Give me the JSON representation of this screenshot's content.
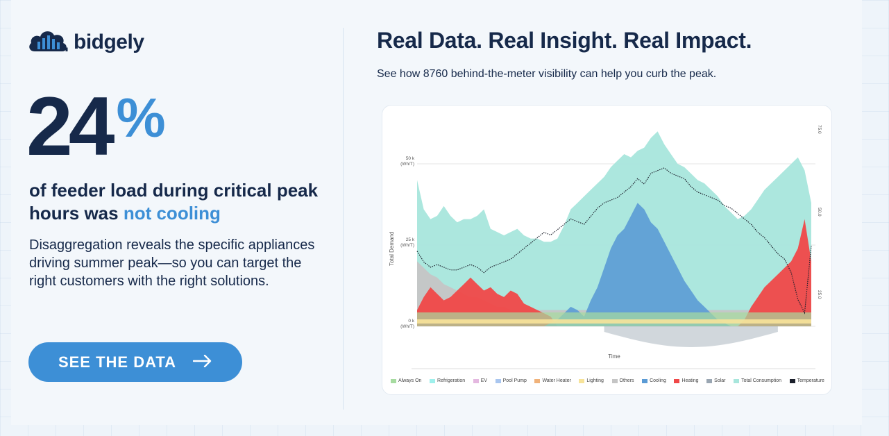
{
  "brand": {
    "name": "bidgely"
  },
  "left": {
    "stat_number": "24",
    "stat_suffix": "%",
    "headline_pre": "of feeder load during critical peak hours was ",
    "headline_accent": "not cooling",
    "body": "Disaggregation reveals the specific appliances driving summer peak—so you can target the right customers with the right solutions.",
    "cta_label": "SEE THE DATA",
    "cta_icon": "arrow-right-icon"
  },
  "right": {
    "title": "Real Data. Real Insight. Real Impact.",
    "subtitle": "See how 8760 behind-the-meter visibility can help you curb the peak."
  },
  "colors": {
    "navy": "#16294a",
    "accent": "#3d8fd6",
    "always_on": "#a6dba0",
    "refrigeration": "#9ff0ec",
    "ev": "#e4b8e0",
    "pool_pump": "#a9c6ef",
    "water_heater": "#f0b27a",
    "lighting": "#f7e39a",
    "others": "#c5c5c5",
    "cooling": "#5b9bd5",
    "heating": "#f04848",
    "solar": "#9aa6b2",
    "total_consumption": "#a8e6dc",
    "temperature": "#1b1f2b"
  },
  "chart_data": {
    "type": "area",
    "ylabel": "Total Demand",
    "xlabel": "Time",
    "y_left_ticks": [
      {
        "value": 50000,
        "label": "50 k",
        "unit": "(Wh/T)"
      },
      {
        "value": 25000,
        "label": "25 k",
        "unit": "(Wh/T)"
      },
      {
        "value": 0,
        "label": "0 k",
        "unit": "(Wh/T)"
      }
    ],
    "y_right_ticks": [
      "75.0",
      "50.0",
      "25.0"
    ],
    "ylim": [
      0,
      50000
    ],
    "x_points": 60,
    "series": [
      {
        "name": "Total Consumption",
        "key": "total_consumption",
        "values": [
          45000,
          36000,
          33000,
          34000,
          37000,
          34000,
          32000,
          33000,
          33000,
          34000,
          36000,
          30000,
          29000,
          28000,
          29000,
          30000,
          28000,
          27000,
          27000,
          26000,
          26000,
          27000,
          31000,
          36000,
          38000,
          40000,
          42000,
          44000,
          46000,
          49000,
          51000,
          53000,
          52000,
          54000,
          55000,
          58000,
          60000,
          56000,
          53000,
          50000,
          49000,
          47000,
          45000,
          44000,
          42000,
          40000,
          37000,
          35000,
          33000,
          34000,
          36000,
          39000,
          42000,
          44000,
          46000,
          48000,
          50000,
          52000,
          48000,
          38000
        ]
      },
      {
        "name": "Heating",
        "key": "heating",
        "values": [
          5000,
          9000,
          12000,
          10000,
          8000,
          9000,
          11000,
          13000,
          15000,
          13000,
          11000,
          12000,
          10000,
          9000,
          11000,
          10000,
          7000,
          6000,
          5000,
          4000,
          3000,
          0,
          0,
          0,
          0,
          0,
          0,
          0,
          0,
          0,
          0,
          0,
          0,
          0,
          0,
          0,
          0,
          0,
          0,
          0,
          0,
          0,
          0,
          0,
          0,
          0,
          0,
          0,
          0,
          2000,
          6000,
          9000,
          12000,
          14000,
          16000,
          18000,
          20000,
          24000,
          33000,
          20000
        ]
      },
      {
        "name": "Cooling",
        "key": "cooling",
        "values": [
          0,
          0,
          0,
          0,
          0,
          0,
          0,
          0,
          0,
          0,
          0,
          0,
          0,
          0,
          0,
          0,
          0,
          0,
          0,
          0,
          1000,
          2000,
          4000,
          6000,
          5000,
          3000,
          8000,
          12000,
          18000,
          24000,
          28000,
          30000,
          34000,
          38000,
          36000,
          32000,
          30000,
          26000,
          22000,
          18000,
          14000,
          11000,
          8000,
          6000,
          4000,
          2000,
          1000,
          0,
          0,
          0,
          0,
          0,
          0,
          0,
          0,
          0,
          0,
          0,
          0,
          0
        ]
      },
      {
        "name": "Others",
        "key": "others",
        "values": [
          20000,
          18000,
          16000,
          15000,
          13000,
          12000,
          11000,
          10000,
          9000,
          9000,
          8000,
          7000,
          6000,
          6000,
          5000,
          5000,
          5000,
          5000,
          5000,
          5000,
          5000,
          5000,
          5000,
          5000,
          5000,
          5000,
          5000,
          5000,
          5000,
          5000,
          5000,
          5000,
          5000,
          5000,
          5000,
          5000,
          5000,
          5000,
          5000,
          5000,
          5000,
          5000,
          5000,
          5000,
          5000,
          5000,
          5000,
          5000,
          5000,
          5000,
          5000,
          5000,
          5000,
          5000,
          5000,
          5000,
          5000,
          5000,
          5000,
          5000
        ]
      },
      {
        "name": "Temperature",
        "key": "temperature",
        "values": [
          28,
          24,
          22,
          23,
          22,
          21,
          21,
          22,
          23,
          22,
          20,
          22,
          23,
          24,
          25,
          27,
          29,
          31,
          33,
          35,
          34,
          36,
          38,
          40,
          39,
          38,
          41,
          44,
          46,
          47,
          48,
          50,
          52,
          55,
          53,
          57,
          58,
          59,
          57,
          56,
          55,
          52,
          50,
          49,
          48,
          47,
          45,
          44,
          42,
          40,
          38,
          35,
          33,
          30,
          27,
          25,
          20,
          10,
          5,
          30
        ]
      }
    ],
    "legend": [
      {
        "label": "Always On",
        "key": "always_on"
      },
      {
        "label": "Refrigeration",
        "key": "refrigeration"
      },
      {
        "label": "EV",
        "key": "ev"
      },
      {
        "label": "Pool Pump",
        "key": "pool_pump"
      },
      {
        "label": "Water Heater",
        "key": "water_heater"
      },
      {
        "label": "Lighting",
        "key": "lighting"
      },
      {
        "label": "Others",
        "key": "others"
      },
      {
        "label": "Cooling",
        "key": "cooling"
      },
      {
        "label": "Heating",
        "key": "heating"
      },
      {
        "label": "Solar",
        "key": "solar"
      },
      {
        "label": "Total Consumption",
        "key": "total_consumption"
      },
      {
        "label": "Temperature",
        "key": "temperature"
      }
    ]
  }
}
